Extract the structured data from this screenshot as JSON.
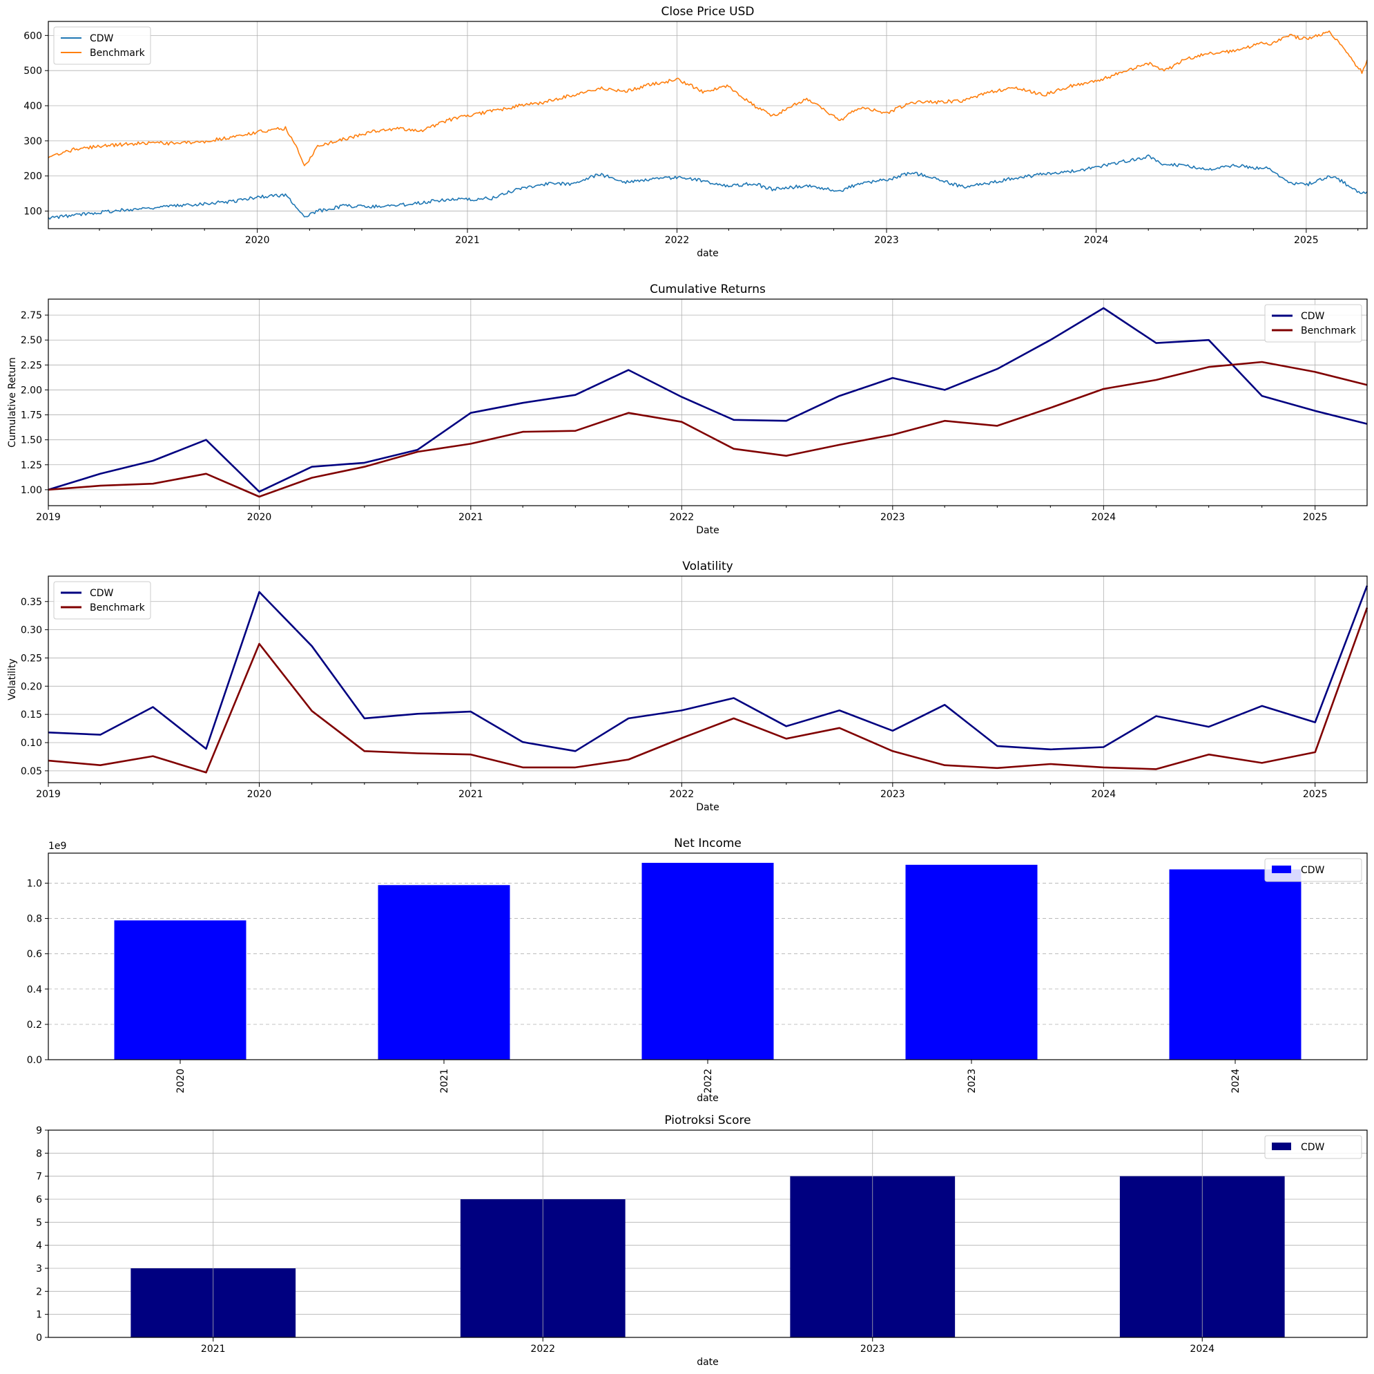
{
  "chart_data": [
    {
      "type": "line",
      "title": "Close Price USD",
      "xlabel": "date",
      "ylabel": "",
      "xlim": [
        "2019-01-02",
        "2025-04-17"
      ],
      "ylim": [
        50,
        640
      ],
      "yticks": [
        100,
        200,
        300,
        400,
        500,
        600
      ],
      "xticks": [
        "2020",
        "2021",
        "2022",
        "2023",
        "2024",
        "2025"
      ],
      "grid": true,
      "legend": "top-left",
      "series": [
        {
          "name": "CDW",
          "color": "#1f77b4",
          "x": [
            "2019-01-02",
            "2019-02-15",
            "2019-04-01",
            "2019-05-15",
            "2019-07-01",
            "2019-08-15",
            "2019-10-01",
            "2019-11-15",
            "2020-01-02",
            "2020-02-19",
            "2020-03-16",
            "2020-03-23",
            "2020-04-15",
            "2020-06-01",
            "2020-07-15",
            "2020-09-01",
            "2020-10-15",
            "2020-12-01",
            "2021-01-04",
            "2021-02-15",
            "2021-04-01",
            "2021-05-15",
            "2021-07-01",
            "2021-08-20",
            "2021-10-01",
            "2021-11-15",
            "2022-01-03",
            "2022-02-15",
            "2022-04-01",
            "2022-05-15",
            "2022-06-16",
            "2022-08-15",
            "2022-10-12",
            "2022-11-15",
            "2023-01-03",
            "2023-02-15",
            "2023-04-01",
            "2023-05-15",
            "2023-07-01",
            "2023-08-15",
            "2023-10-01",
            "2023-11-15",
            "2024-01-02",
            "2024-02-15",
            "2024-04-01",
            "2024-05-01",
            "2024-06-01",
            "2024-07-15",
            "2024-09-01",
            "2024-10-15",
            "2024-11-01",
            "2024-12-01",
            "2025-01-02",
            "2025-02-10",
            "2025-03-01",
            "2025-04-08",
            "2025-04-17"
          ],
          "values": [
            80,
            88,
            97,
            103,
            110,
            115,
            122,
            127,
            140,
            146,
            100,
            82,
            100,
            115,
            113,
            116,
            125,
            134,
            132,
            137,
            165,
            177,
            178,
            205,
            183,
            190,
            197,
            186,
            172,
            178,
            162,
            172,
            158,
            178,
            190,
            210,
            190,
            168,
            180,
            195,
            205,
            212,
            225,
            240,
            255,
            230,
            232,
            218,
            230,
            222,
            220,
            182,
            175,
            200,
            188,
            148,
            155
          ]
        },
        {
          "name": "Benchmark",
          "color": "#ff7f0e",
          "x": [
            "2019-01-02",
            "2019-02-15",
            "2019-04-01",
            "2019-05-15",
            "2019-07-01",
            "2019-08-15",
            "2019-10-01",
            "2019-11-15",
            "2020-01-02",
            "2020-02-19",
            "2020-03-16",
            "2020-03-23",
            "2020-04-15",
            "2020-06-01",
            "2020-07-15",
            "2020-09-01",
            "2020-10-15",
            "2020-12-01",
            "2021-01-04",
            "2021-02-15",
            "2021-04-01",
            "2021-05-15",
            "2021-07-01",
            "2021-08-20",
            "2021-10-01",
            "2021-11-15",
            "2022-01-03",
            "2022-02-15",
            "2022-04-01",
            "2022-05-15",
            "2022-06-16",
            "2022-08-15",
            "2022-10-12",
            "2022-11-15",
            "2023-01-03",
            "2023-02-15",
            "2023-04-01",
            "2023-05-15",
            "2023-07-01",
            "2023-08-15",
            "2023-10-01",
            "2023-11-15",
            "2024-01-02",
            "2024-02-15",
            "2024-04-01",
            "2024-05-01",
            "2024-06-01",
            "2024-07-15",
            "2024-09-01",
            "2024-10-15",
            "2024-11-01",
            "2024-12-01",
            "2025-01-02",
            "2025-02-10",
            "2025-03-01",
            "2025-04-08",
            "2025-04-17"
          ],
          "values": [
            252,
            275,
            285,
            290,
            295,
            292,
            298,
            310,
            325,
            336,
            260,
            225,
            285,
            305,
            325,
            335,
            330,
            360,
            372,
            385,
            400,
            410,
            430,
            450,
            440,
            460,
            475,
            440,
            455,
            400,
            370,
            420,
            358,
            395,
            380,
            410,
            410,
            415,
            440,
            450,
            430,
            455,
            470,
            495,
            520,
            500,
            530,
            550,
            555,
            580,
            575,
            600,
            590,
            610,
            575,
            495,
            530
          ]
        }
      ]
    },
    {
      "type": "line",
      "title": "Cumulative Returns",
      "xlabel": "Date",
      "ylabel": "Cumulative Return",
      "xlim": [
        "2019-01-01",
        "2025-04-01"
      ],
      "ylim": [
        0.84,
        2.91
      ],
      "yticks": [
        "1.00",
        "1.25",
        "1.50",
        "1.75",
        "2.00",
        "2.25",
        "2.50",
        "2.75"
      ],
      "xticks": [
        "2019",
        "2020",
        "2021",
        "2022",
        "2023",
        "2024",
        "2025"
      ],
      "grid": true,
      "legend": "top-right",
      "series": [
        {
          "name": "CDW",
          "color": "#000080",
          "x": [
            "2019-01-01",
            "2019-04-01",
            "2019-07-01",
            "2019-10-01",
            "2020-01-01",
            "2020-04-01",
            "2020-07-01",
            "2020-10-01",
            "2021-01-01",
            "2021-04-01",
            "2021-07-01",
            "2021-10-01",
            "2022-01-01",
            "2022-04-01",
            "2022-07-01",
            "2022-10-01",
            "2023-01-01",
            "2023-04-01",
            "2023-07-01",
            "2023-10-01",
            "2024-01-01",
            "2024-04-01",
            "2024-07-01",
            "2024-10-01",
            "2025-01-01",
            "2025-04-01"
          ],
          "values": [
            1.0,
            1.16,
            1.29,
            1.5,
            0.98,
            1.23,
            1.27,
            1.4,
            1.77,
            1.87,
            1.95,
            2.2,
            1.93,
            1.7,
            1.69,
            1.94,
            2.12,
            2.0,
            2.21,
            2.5,
            2.82,
            2.47,
            2.5,
            1.94,
            1.79,
            1.66
          ]
        },
        {
          "name": "Benchmark",
          "color": "#800000",
          "x": [
            "2019-01-01",
            "2019-04-01",
            "2019-07-01",
            "2019-10-01",
            "2020-01-01",
            "2020-04-01",
            "2020-07-01",
            "2020-10-01",
            "2021-01-01",
            "2021-04-01",
            "2021-07-01",
            "2021-10-01",
            "2022-01-01",
            "2022-04-01",
            "2022-07-01",
            "2022-10-01",
            "2023-01-01",
            "2023-04-01",
            "2023-07-01",
            "2023-10-01",
            "2024-01-01",
            "2024-04-01",
            "2024-07-01",
            "2024-10-01",
            "2025-01-01",
            "2025-04-01"
          ],
          "values": [
            1.0,
            1.04,
            1.06,
            1.16,
            0.93,
            1.12,
            1.23,
            1.38,
            1.46,
            1.58,
            1.59,
            1.77,
            1.68,
            1.41,
            1.34,
            1.45,
            1.55,
            1.69,
            1.64,
            1.82,
            2.01,
            2.1,
            2.23,
            2.28,
            2.18,
            2.05
          ]
        }
      ]
    },
    {
      "type": "line",
      "title": "Volatility",
      "xlabel": "Date",
      "ylabel": "Volatility",
      "xlim": [
        "2019-01-01",
        "2025-04-01"
      ],
      "ylim": [
        0.029,
        0.395
      ],
      "yticks": [
        "0.05",
        "0.10",
        "0.15",
        "0.20",
        "0.25",
        "0.30",
        "0.35"
      ],
      "xticks": [
        "2019",
        "2020",
        "2021",
        "2022",
        "2023",
        "2024",
        "2025"
      ],
      "grid": true,
      "legend": "top-left",
      "series": [
        {
          "name": "CDW",
          "color": "#000080",
          "x": [
            "2019-01-01",
            "2019-04-01",
            "2019-07-01",
            "2019-10-01",
            "2020-01-01",
            "2020-04-01",
            "2020-07-01",
            "2020-10-01",
            "2021-01-01",
            "2021-04-01",
            "2021-07-01",
            "2021-10-01",
            "2022-01-01",
            "2022-04-01",
            "2022-07-01",
            "2022-10-01",
            "2023-01-01",
            "2023-04-01",
            "2023-07-01",
            "2023-10-01",
            "2024-01-01",
            "2024-04-01",
            "2024-07-01",
            "2024-10-01",
            "2025-01-01",
            "2025-04-01"
          ],
          "values": [
            0.118,
            0.114,
            0.163,
            0.089,
            0.367,
            0.271,
            0.143,
            0.151,
            0.155,
            0.101,
            0.085,
            0.143,
            0.157,
            0.179,
            0.129,
            0.157,
            0.121,
            0.167,
            0.094,
            0.088,
            0.092,
            0.147,
            0.128,
            0.165,
            0.136,
            0.378
          ]
        },
        {
          "name": "Benchmark",
          "color": "#800000",
          "x": [
            "2019-01-01",
            "2019-04-01",
            "2019-07-01",
            "2019-10-01",
            "2020-01-01",
            "2020-04-01",
            "2020-07-01",
            "2020-10-01",
            "2021-01-01",
            "2021-04-01",
            "2021-07-01",
            "2021-10-01",
            "2022-01-01",
            "2022-04-01",
            "2022-07-01",
            "2022-10-01",
            "2023-01-01",
            "2023-04-01",
            "2023-07-01",
            "2023-10-01",
            "2024-01-01",
            "2024-04-01",
            "2024-07-01",
            "2024-10-01",
            "2025-01-01",
            "2025-04-01"
          ],
          "values": [
            0.068,
            0.06,
            0.076,
            0.047,
            0.275,
            0.156,
            0.085,
            0.081,
            0.079,
            0.056,
            0.056,
            0.07,
            0.108,
            0.143,
            0.107,
            0.126,
            0.085,
            0.06,
            0.055,
            0.062,
            0.056,
            0.053,
            0.079,
            0.064,
            0.083,
            0.339
          ]
        }
      ]
    },
    {
      "type": "bar",
      "title": "Net Income",
      "xlabel": "date",
      "ylabel": "",
      "offset_label": "1e9",
      "categories": [
        "2020",
        "2021",
        "2022",
        "2023",
        "2024"
      ],
      "ylim": [
        0,
        1.17
      ],
      "yticks": [
        "0.0",
        "0.2",
        "0.4",
        "0.6",
        "0.8",
        "1.0"
      ],
      "grid": "y-dashed",
      "legend": "top-right",
      "series": [
        {
          "name": "CDW",
          "color": "#0000ff",
          "values": [
            0.789,
            0.989,
            1.115,
            1.104,
            1.078
          ]
        }
      ]
    },
    {
      "type": "bar",
      "title": "Piotroksi Score",
      "xlabel": "date",
      "ylabel": "",
      "categories": [
        "2021",
        "2022",
        "2023",
        "2024"
      ],
      "ylim": [
        0,
        9
      ],
      "yticks": [
        "0",
        "1",
        "2",
        "3",
        "4",
        "5",
        "6",
        "7",
        "8",
        "9"
      ],
      "grid": true,
      "legend": "top-right",
      "series": [
        {
          "name": "CDW",
          "color": "#000080",
          "values": [
            3,
            6,
            7,
            7
          ]
        }
      ]
    }
  ]
}
